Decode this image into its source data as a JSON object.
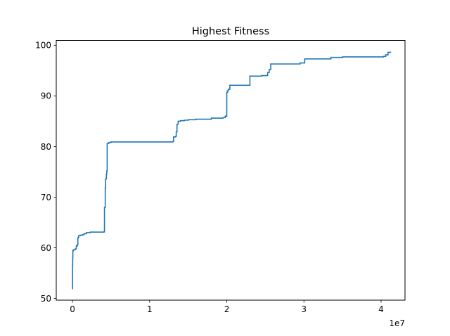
{
  "chart_data": {
    "type": "line",
    "title": "Highest Fitness",
    "xlabel": "",
    "ylabel": "",
    "x_offset_label": "1e7",
    "xlim": [
      -0.21,
      4.31
    ],
    "ylim": [
      49.67,
      100.95
    ],
    "x_ticks": [
      0,
      1,
      2,
      3,
      4
    ],
    "x_tick_labels": [
      "0",
      "1",
      "2",
      "3",
      "4"
    ],
    "y_ticks": [
      50,
      60,
      70,
      80,
      90,
      100
    ],
    "y_tick_labels": [
      "50",
      "60",
      "70",
      "80",
      "90",
      "100"
    ],
    "grid": false,
    "series": [
      {
        "color": "#1f77b4",
        "step": true,
        "points": [
          [
            0.0,
            51.9
          ],
          [
            0.001,
            56.5
          ],
          [
            0.003,
            58.0
          ],
          [
            0.005,
            59.4
          ],
          [
            0.01,
            59.6
          ],
          [
            0.03,
            59.7
          ],
          [
            0.04,
            59.8
          ],
          [
            0.05,
            60.4
          ],
          [
            0.065,
            60.6
          ],
          [
            0.07,
            62.0
          ],
          [
            0.08,
            62.4
          ],
          [
            0.1,
            62.5
          ],
          [
            0.13,
            62.6
          ],
          [
            0.15,
            62.8
          ],
          [
            0.18,
            63.0
          ],
          [
            0.23,
            63.1
          ],
          [
            0.41,
            63.2
          ],
          [
            0.415,
            68.0
          ],
          [
            0.425,
            71.8
          ],
          [
            0.43,
            73.6
          ],
          [
            0.44,
            74.6
          ],
          [
            0.445,
            75.2
          ],
          [
            0.45,
            80.6
          ],
          [
            0.47,
            80.8
          ],
          [
            0.5,
            80.9
          ],
          [
            1.3,
            81.0
          ],
          [
            1.31,
            81.9
          ],
          [
            1.335,
            82.0
          ],
          [
            1.345,
            82.9
          ],
          [
            1.355,
            84.4
          ],
          [
            1.37,
            85.0
          ],
          [
            1.4,
            85.1
          ],
          [
            1.45,
            85.2
          ],
          [
            1.5,
            85.3
          ],
          [
            1.6,
            85.4
          ],
          [
            1.8,
            85.6
          ],
          [
            1.95,
            85.7
          ],
          [
            1.98,
            86.0
          ],
          [
            2.0,
            90.7
          ],
          [
            2.01,
            91.0
          ],
          [
            2.02,
            91.3
          ],
          [
            2.04,
            92.1
          ],
          [
            2.3,
            93.9
          ],
          [
            2.45,
            94.0
          ],
          [
            2.53,
            94.6
          ],
          [
            2.55,
            95.2
          ],
          [
            2.57,
            96.3
          ],
          [
            2.95,
            96.5
          ],
          [
            3.01,
            97.3
          ],
          [
            3.35,
            97.6
          ],
          [
            3.5,
            97.7
          ],
          [
            4.03,
            97.8
          ],
          [
            4.06,
            98.1
          ],
          [
            4.09,
            98.6
          ],
          [
            4.13,
            98.6
          ]
        ]
      }
    ]
  }
}
